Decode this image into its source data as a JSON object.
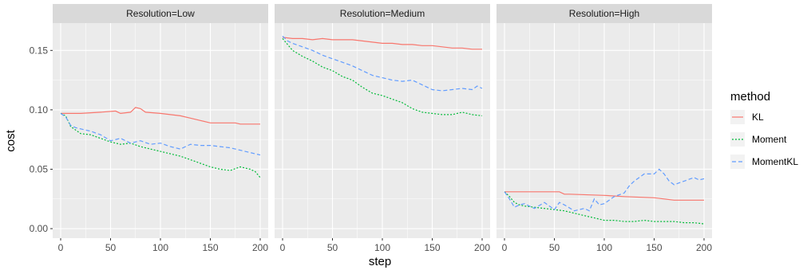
{
  "chart_data": {
    "type": "line",
    "xlabel": "step",
    "ylabel": "cost",
    "xlim": [
      -8,
      208
    ],
    "ylim": [
      -0.008,
      0.173
    ],
    "x_ticks": [
      0,
      50,
      100,
      150,
      200
    ],
    "y_ticks": [
      0.0,
      0.05,
      0.1,
      0.15
    ],
    "y_tick_labels": [
      "0.00",
      "0.05",
      "0.10",
      "0.15"
    ],
    "legend": {
      "title": "method",
      "placement": "right",
      "items": [
        {
          "label": "KL",
          "color": "#F8766D",
          "dash": "solid"
        },
        {
          "label": "Moment",
          "color": "#00BA38",
          "dash": "dotted"
        },
        {
          "label": "MomentKL",
          "color": "#619CFF",
          "dash": "dashed"
        }
      ]
    },
    "panels": [
      {
        "title": "Resolution=Low",
        "series": [
          {
            "name": "KL",
            "x": [
              0,
              20,
              40,
              55,
              60,
              70,
              75,
              80,
              85,
              100,
              110,
              120,
              130,
              140,
              150,
              160,
              175,
              180,
              200
            ],
            "y": [
              0.097,
              0.097,
              0.098,
              0.099,
              0.097,
              0.098,
              0.102,
              0.101,
              0.098,
              0.097,
              0.096,
              0.095,
              0.093,
              0.091,
              0.089,
              0.089,
              0.089,
              0.088,
              0.088
            ]
          },
          {
            "name": "Moment",
            "x": [
              0,
              5,
              10,
              15,
              20,
              30,
              40,
              50,
              60,
              70,
              80,
              90,
              100,
              110,
              120,
              130,
              140,
              150,
              160,
              170,
              180,
              190,
              195,
              200
            ],
            "y": [
              0.097,
              0.095,
              0.086,
              0.083,
              0.08,
              0.079,
              0.076,
              0.073,
              0.071,
              0.072,
              0.069,
              0.067,
              0.065,
              0.063,
              0.061,
              0.058,
              0.055,
              0.052,
              0.05,
              0.049,
              0.052,
              0.05,
              0.048,
              0.043
            ]
          },
          {
            "name": "MomentKL",
            "x": [
              0,
              5,
              10,
              15,
              20,
              30,
              40,
              50,
              60,
              70,
              80,
              90,
              100,
              110,
              120,
              130,
              140,
              150,
              160,
              170,
              180,
              190,
              195,
              200
            ],
            "y": [
              0.097,
              0.094,
              0.087,
              0.085,
              0.084,
              0.082,
              0.079,
              0.074,
              0.076,
              0.072,
              0.074,
              0.071,
              0.072,
              0.069,
              0.067,
              0.071,
              0.07,
              0.07,
              0.069,
              0.068,
              0.066,
              0.064,
              0.063,
              0.062
            ]
          }
        ]
      },
      {
        "title": "Resolution=Medium",
        "series": [
          {
            "name": "KL",
            "x": [
              0,
              10,
              20,
              30,
              40,
              50,
              60,
              70,
              80,
              90,
              100,
              110,
              120,
              130,
              140,
              150,
              160,
              170,
              180,
              190,
              200
            ],
            "y": [
              0.161,
              0.16,
              0.16,
              0.159,
              0.16,
              0.159,
              0.159,
              0.159,
              0.158,
              0.157,
              0.156,
              0.156,
              0.155,
              0.155,
              0.154,
              0.154,
              0.153,
              0.152,
              0.152,
              0.151,
              0.151
            ]
          },
          {
            "name": "Moment",
            "x": [
              0,
              5,
              10,
              20,
              30,
              40,
              50,
              60,
              70,
              80,
              90,
              100,
              110,
              120,
              130,
              140,
              150,
              160,
              170,
              180,
              190,
              200
            ],
            "y": [
              0.16,
              0.155,
              0.15,
              0.145,
              0.141,
              0.136,
              0.133,
              0.128,
              0.125,
              0.119,
              0.114,
              0.112,
              0.109,
              0.106,
              0.101,
              0.098,
              0.097,
              0.096,
              0.096,
              0.098,
              0.096,
              0.095
            ]
          },
          {
            "name": "MomentKL",
            "x": [
              0,
              5,
              10,
              20,
              30,
              40,
              50,
              60,
              70,
              80,
              90,
              100,
              110,
              120,
              130,
              140,
              150,
              160,
              170,
              180,
              190,
              195,
              200
            ],
            "y": [
              0.162,
              0.158,
              0.156,
              0.153,
              0.15,
              0.146,
              0.143,
              0.14,
              0.137,
              0.133,
              0.129,
              0.127,
              0.125,
              0.124,
              0.125,
              0.121,
              0.117,
              0.116,
              0.117,
              0.118,
              0.117,
              0.12,
              0.118
            ]
          }
        ]
      },
      {
        "title": "Resolution=High",
        "series": [
          {
            "name": "KL",
            "x": [
              0,
              10,
              20,
              30,
              40,
              50,
              55,
              60,
              65,
              100,
              120,
              150,
              160,
              170,
              180,
              190,
              200
            ],
            "y": [
              0.031,
              0.031,
              0.031,
              0.031,
              0.031,
              0.031,
              0.031,
              0.029,
              0.029,
              0.028,
              0.027,
              0.026,
              0.025,
              0.024,
              0.024,
              0.024,
              0.024
            ]
          },
          {
            "name": "Moment",
            "x": [
              0,
              5,
              10,
              15,
              20,
              30,
              40,
              50,
              60,
              70,
              80,
              90,
              100,
              110,
              120,
              130,
              140,
              150,
              160,
              170,
              180,
              190,
              200
            ],
            "y": [
              0.031,
              0.027,
              0.022,
              0.02,
              0.019,
              0.018,
              0.017,
              0.016,
              0.015,
              0.013,
              0.011,
              0.009,
              0.007,
              0.007,
              0.006,
              0.006,
              0.007,
              0.006,
              0.006,
              0.006,
              0.005,
              0.005,
              0.004
            ]
          },
          {
            "name": "MomentKL",
            "x": [
              0,
              5,
              10,
              15,
              20,
              30,
              40,
              50,
              55,
              60,
              70,
              80,
              85,
              90,
              95,
              100,
              110,
              120,
              125,
              130,
              140,
              150,
              155,
              160,
              165,
              170,
              180,
              190,
              195,
              200
            ],
            "y": [
              0.031,
              0.025,
              0.018,
              0.02,
              0.021,
              0.017,
              0.022,
              0.016,
              0.022,
              0.02,
              0.015,
              0.017,
              0.015,
              0.025,
              0.02,
              0.021,
              0.027,
              0.03,
              0.036,
              0.04,
              0.046,
              0.046,
              0.05,
              0.046,
              0.04,
              0.037,
              0.04,
              0.043,
              0.041,
              0.042
            ]
          }
        ]
      }
    ]
  }
}
